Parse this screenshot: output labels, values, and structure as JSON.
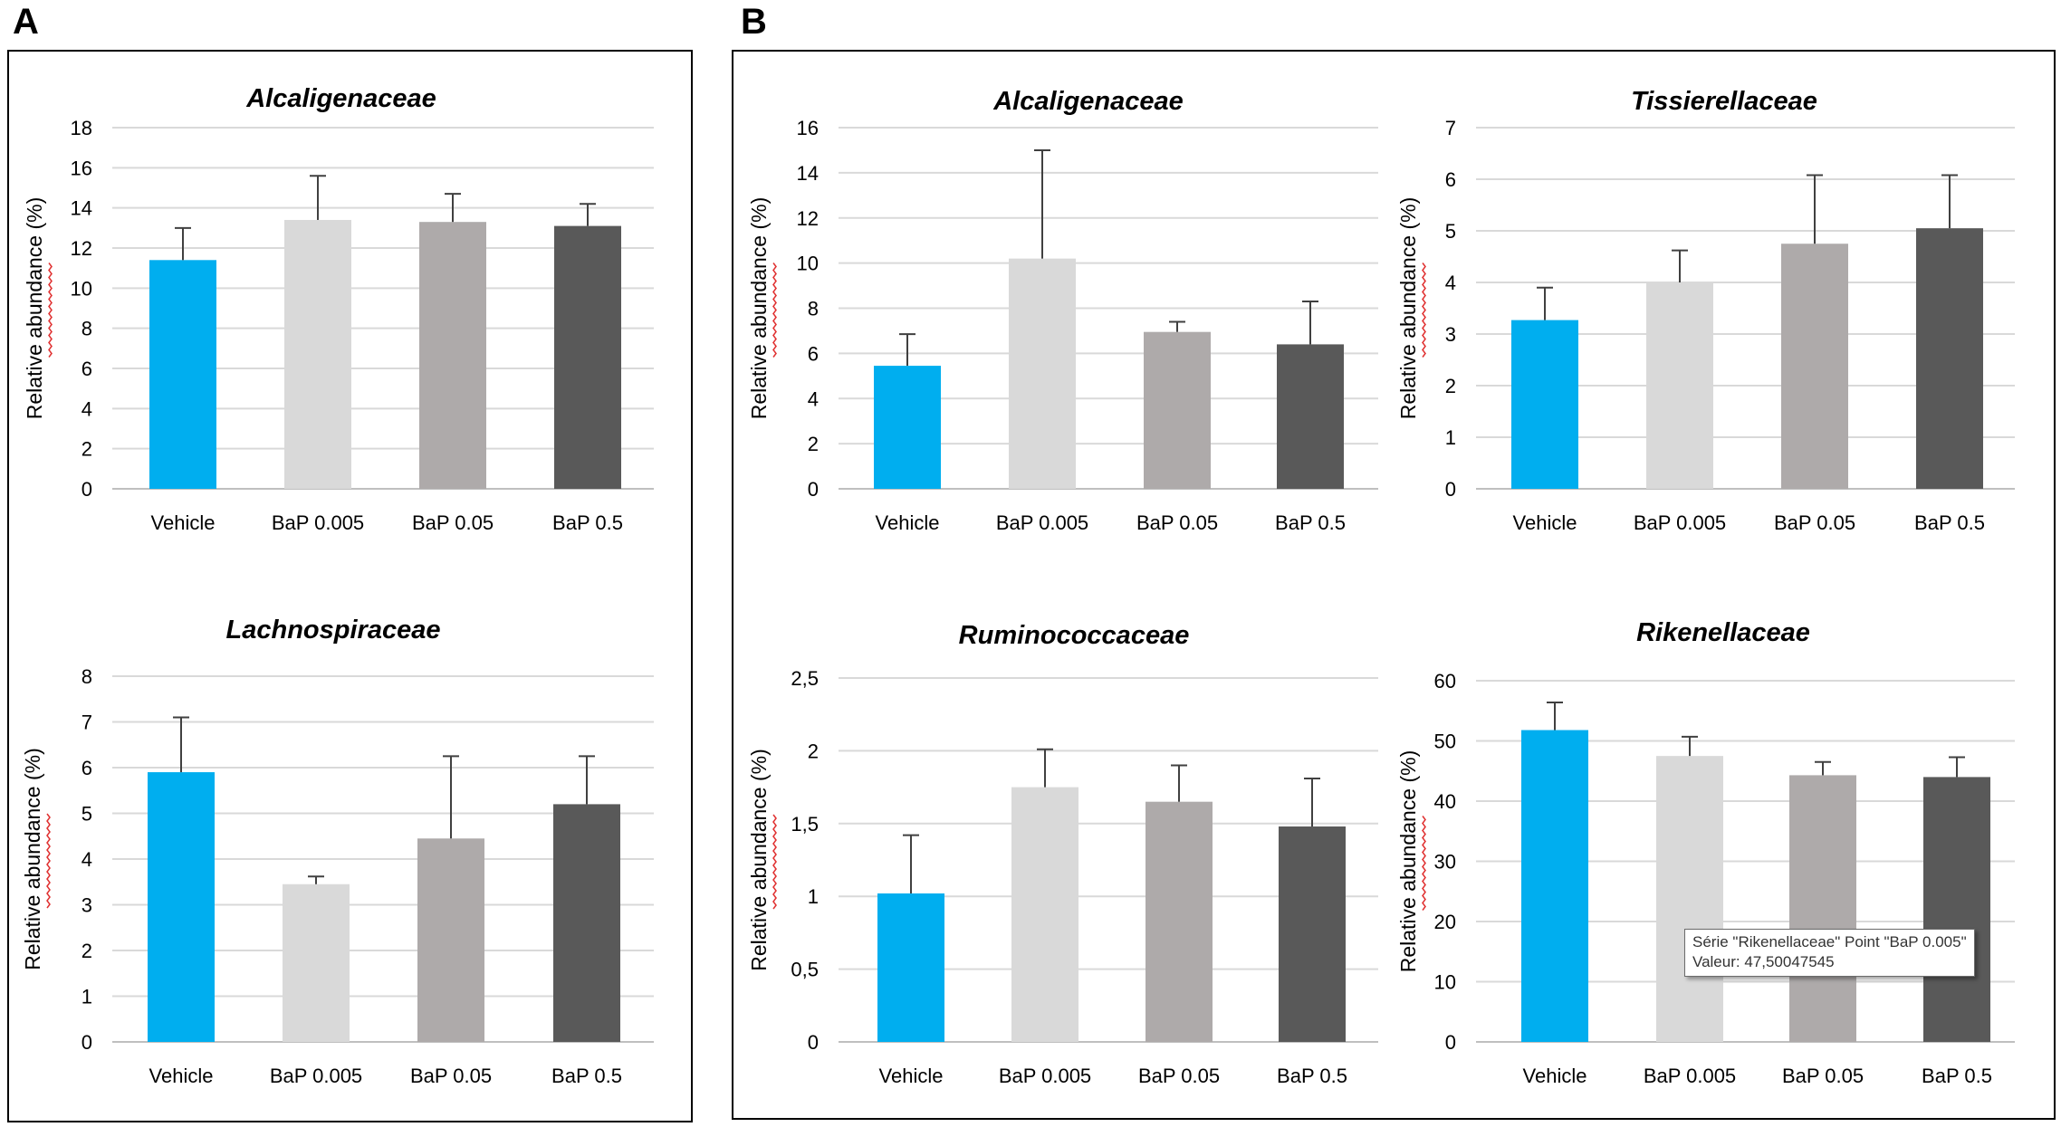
{
  "panels": {
    "A": {
      "label": "A"
    },
    "B": {
      "label": "B"
    }
  },
  "colors": {
    "Vehicle": "#00AEEF",
    "BaP 0.005": "#D9D9D9",
    "BaP 0.05": "#AEAAAA",
    "BaP 0.5": "#595959",
    "grid": "#D9D9D9",
    "axis_text": "#000000",
    "error_bar": "#404040",
    "spellcheck_underline": "#E03030"
  },
  "tooltip": {
    "line1": "Série \"Rikenellaceae\" Point \"BaP 0.005\"",
    "line2": "Valeur: 47,50047545"
  },
  "chart_data": [
    {
      "id": "A-alcaligenaceae",
      "panel": "A",
      "type": "bar",
      "title": "Alcaligenaceae",
      "ylabel": "Relative abundance (%)",
      "xlabel": "",
      "categories": [
        "Vehicle",
        "BaP 0.005",
        "BaP 0.05",
        "BaP 0.5"
      ],
      "values": [
        11.4,
        13.4,
        13.3,
        13.1
      ],
      "errors": [
        1.6,
        2.2,
        1.4,
        1.1
      ],
      "ylim": [
        0,
        18
      ],
      "yticks": [
        0,
        2,
        4,
        6,
        8,
        10,
        12,
        14,
        16,
        18
      ],
      "ytick_labels": [
        "0",
        "2",
        "4",
        "6",
        "8",
        "10",
        "12",
        "14",
        "16",
        "18"
      ],
      "grid": true
    },
    {
      "id": "A-lachnospiraceae",
      "panel": "A",
      "type": "bar",
      "title": "Lachnospiraceae",
      "ylabel": "Relative abundance (%)",
      "xlabel": "",
      "categories": [
        "Vehicle",
        "BaP 0.005",
        "BaP 0.05",
        "BaP 0.5"
      ],
      "values": [
        5.9,
        3.45,
        4.45,
        5.2
      ],
      "errors": [
        1.2,
        0.17,
        1.8,
        1.05
      ],
      "ylim": [
        0,
        8
      ],
      "yticks": [
        0,
        1,
        2,
        3,
        4,
        5,
        6,
        7,
        8
      ],
      "ytick_labels": [
        "0",
        "1",
        "2",
        "3",
        "4",
        "5",
        "6",
        "7",
        "8"
      ],
      "grid": true
    },
    {
      "id": "B-alcaligenaceae",
      "panel": "B",
      "type": "bar",
      "title": "Alcaligenaceae",
      "ylabel": "Relative abundance (%)",
      "xlabel": "",
      "categories": [
        "Vehicle",
        "BaP 0.005",
        "BaP 0.05",
        "BaP 0.5"
      ],
      "values": [
        5.45,
        10.2,
        6.95,
        6.4
      ],
      "errors": [
        1.4,
        4.8,
        0.45,
        1.9
      ],
      "ylim": [
        0,
        16
      ],
      "yticks": [
        0,
        2,
        4,
        6,
        8,
        10,
        12,
        14,
        16
      ],
      "ytick_labels": [
        "0",
        "2",
        "4",
        "6",
        "8",
        "10",
        "12",
        "14",
        "16"
      ],
      "grid": true
    },
    {
      "id": "B-tissierellaceae",
      "panel": "B",
      "type": "bar",
      "title": "Tissierellaceae",
      "ylabel": "Relative abundance (%)",
      "xlabel": "",
      "categories": [
        "Vehicle",
        "BaP 0.005",
        "BaP 0.05",
        "BaP 0.5"
      ],
      "values": [
        3.27,
        4.0,
        4.75,
        5.05
      ],
      "errors": [
        0.63,
        0.62,
        1.33,
        1.03
      ],
      "ylim": [
        0,
        7
      ],
      "yticks": [
        0,
        1,
        2,
        3,
        4,
        5,
        6,
        7
      ],
      "ytick_labels": [
        "0",
        "1",
        "2",
        "3",
        "4",
        "5",
        "6",
        "7"
      ],
      "grid": true
    },
    {
      "id": "B-ruminococcaceae",
      "panel": "B",
      "type": "bar",
      "title": "Ruminococcaceae",
      "ylabel": "Relative abundance (%)",
      "xlabel": "",
      "categories": [
        "Vehicle",
        "BaP 0.005",
        "BaP 0.05",
        "BaP 0.5"
      ],
      "values": [
        1.02,
        1.75,
        1.65,
        1.48
      ],
      "errors": [
        0.4,
        0.26,
        0.25,
        0.33
      ],
      "ylim": [
        0,
        2.5
      ],
      "yticks": [
        0,
        0.5,
        1,
        1.5,
        2,
        2.5
      ],
      "ytick_labels": [
        "0",
        "0,5",
        "1",
        "1,5",
        "2",
        "2,5"
      ],
      "grid": true
    },
    {
      "id": "B-rikenellaceae",
      "panel": "B",
      "type": "bar",
      "title": "Rikenellaceae",
      "ylabel": "Relative abundance (%)",
      "xlabel": "",
      "categories": [
        "Vehicle",
        "BaP 0.005",
        "BaP 0.05",
        "BaP 0.5"
      ],
      "values": [
        51.8,
        47.5,
        44.3,
        44.0
      ],
      "errors": [
        4.6,
        3.2,
        2.2,
        3.3
      ],
      "ylim": [
        0,
        60
      ],
      "yticks": [
        0,
        10,
        20,
        30,
        40,
        50,
        60
      ],
      "ytick_labels": [
        "0",
        "10",
        "20",
        "30",
        "40",
        "50",
        "60"
      ],
      "grid": true
    }
  ]
}
